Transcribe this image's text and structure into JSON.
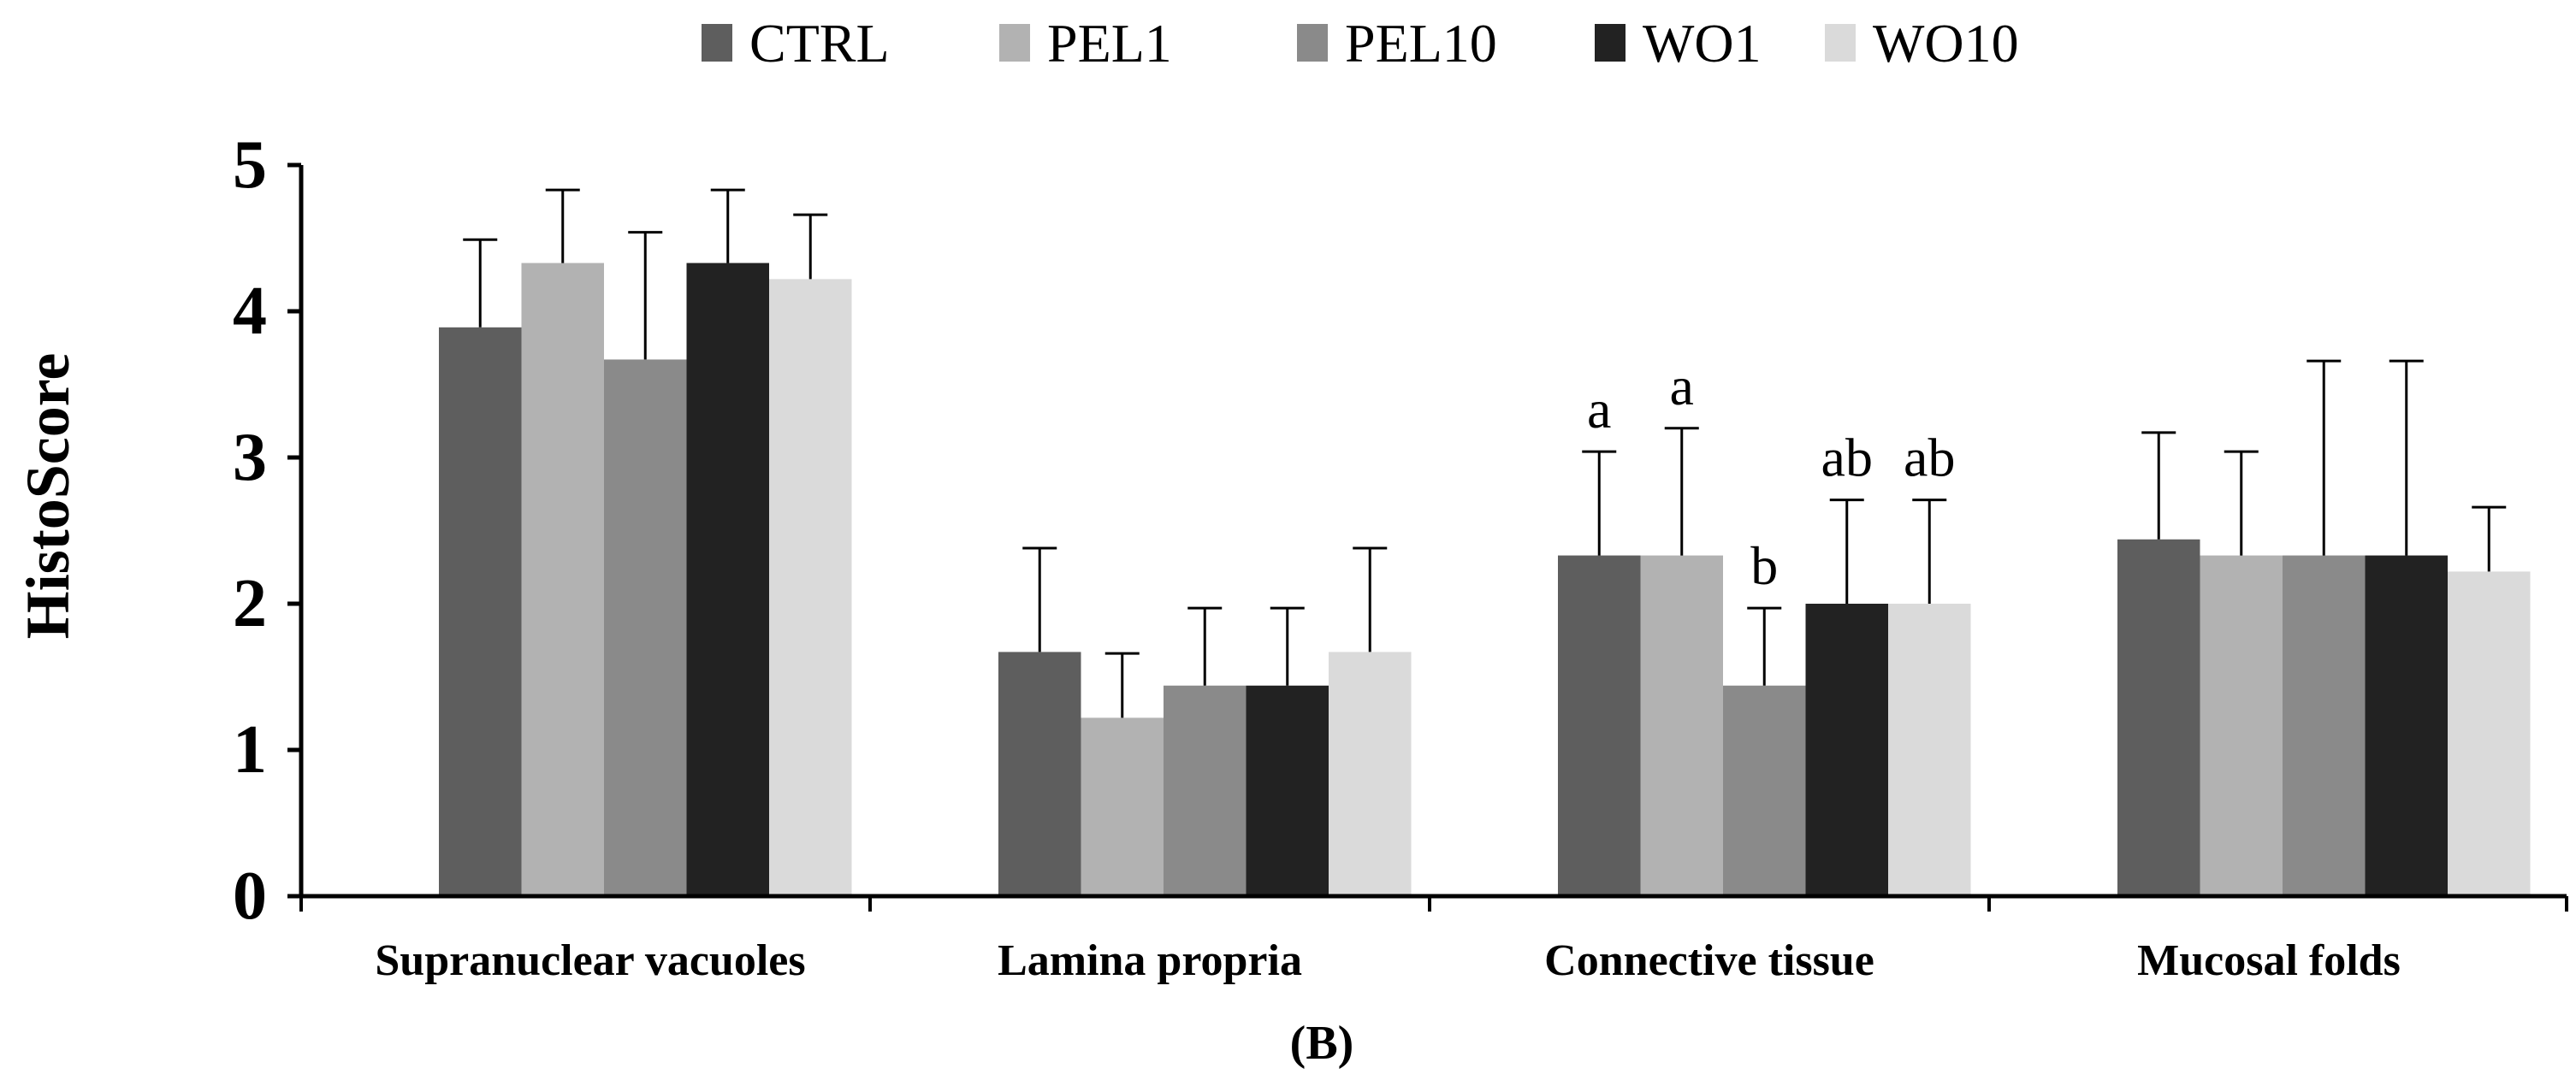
{
  "chart_data": {
    "type": "bar",
    "title": "",
    "panel_label": "(B)",
    "xlabel": "",
    "ylabel": "HistoScore",
    "ylim": [
      0,
      5
    ],
    "yticks": [
      0,
      1,
      2,
      3,
      4,
      5
    ],
    "legend_position": "top-center",
    "categories": [
      "Supranuclear vacuoles",
      "Lamina propria",
      "Connective tissue",
      "Mucosal folds"
    ],
    "series": [
      {
        "name": "CTRL",
        "color": "#5e5e5e",
        "values": [
          3.89,
          1.67,
          2.33,
          2.44
        ],
        "errors": [
          0.6,
          0.71,
          0.71,
          0.73
        ],
        "annotations": [
          "",
          "",
          "a",
          ""
        ]
      },
      {
        "name": "PEL1",
        "color": "#b2b2b2",
        "values": [
          4.33,
          1.22,
          2.33,
          2.33
        ],
        "errors": [
          0.5,
          0.44,
          0.87,
          0.71
        ],
        "annotations": [
          "",
          "",
          "a",
          ""
        ]
      },
      {
        "name": "PEL10",
        "color": "#8a8a8a",
        "values": [
          3.67,
          1.44,
          1.44,
          2.33
        ],
        "errors": [
          0.87,
          0.53,
          0.53,
          1.33
        ],
        "annotations": [
          "",
          "",
          "b",
          ""
        ]
      },
      {
        "name": "WO1",
        "color": "#222222",
        "values": [
          4.33,
          1.44,
          2.0,
          2.33
        ],
        "errors": [
          0.5,
          0.53,
          0.71,
          1.33
        ],
        "annotations": [
          "",
          "",
          "ab",
          ""
        ]
      },
      {
        "name": "WO10",
        "color": "#dadada",
        "values": [
          4.22,
          1.67,
          2.0,
          2.22
        ],
        "errors": [
          0.44,
          0.71,
          0.71,
          0.44
        ],
        "annotations": [
          "",
          "",
          "ab",
          ""
        ]
      }
    ]
  }
}
